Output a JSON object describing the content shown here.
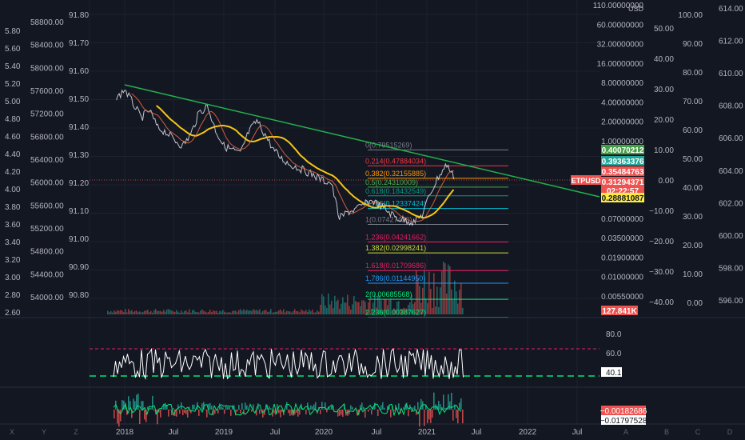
{
  "theme": {
    "bg": "#131722",
    "grid": "#1e222d",
    "axis_text": "#b2b5be",
    "trend": "#22b14c",
    "price": "#e0e3eb",
    "ma_yellow": "#f5c518",
    "ma_orange": "#ff7043",
    "up": "#26a69a",
    "down": "#ef5350",
    "rsi": "#ffffff",
    "rsi_upper": "#e91e63",
    "rsi_lower": "#00e676"
  },
  "chart_data": {
    "type": "line",
    "symbol": "ETPUSD",
    "time_axis": [
      "2018",
      "Jul",
      "2019",
      "Jul",
      "2020",
      "Jul",
      "2021",
      "Jul",
      "2022",
      "Jul"
    ],
    "axes": {
      "left_a": [
        "5.80",
        "5.60",
        "5.40",
        "5.20",
        "5.00",
        "4.80",
        "4.60",
        "4.40",
        "4.20",
        "4.00",
        "3.80",
        "3.60",
        "3.40",
        "3.20",
        "3.00",
        "2.80",
        "2.60"
      ],
      "left_b": [
        "58800.00",
        "58400.00",
        "58000.00",
        "57600.00",
        "57200.00",
        "56800.00",
        "56400.00",
        "56000.00",
        "55600.00",
        "55200.00",
        "54800.00",
        "54400.00",
        "54000.00"
      ],
      "left_c": [
        "91.80",
        "91.70",
        "91.60",
        "91.50",
        "91.40",
        "91.30",
        "91.20",
        "91.10",
        "91.00",
        "90.90",
        "90.80"
      ],
      "price_log": [
        "110.00000000",
        "60.00000000",
        "32.00000000",
        "16.00000000",
        "8.00000000",
        "4.00000000",
        "2.00000000",
        "1.00000000",
        "0.50000000",
        "0.26000000",
        "0.13000000",
        "0.07000000",
        "0.03500000",
        "0.01900000",
        "0.01000000",
        "0.00550000"
      ],
      "price_unit": "USD",
      "right_pct": [
        "50.00",
        "40.00",
        "30.00",
        "20.00",
        "10.00",
        "0.00",
        "−10.00",
        "−20.00",
        "−30.00",
        "−40.00"
      ],
      "right_b": [
        "100.00",
        "90.00",
        "80.00",
        "70.00",
        "60.00",
        "50.00",
        "40.00",
        "30.00",
        "20.00",
        "10.00",
        "0.00"
      ],
      "right_c": [
        "614.00",
        "612.00",
        "610.00",
        "608.00",
        "606.00",
        "604.00",
        "602.00",
        "600.00",
        "598.00",
        "596.00"
      ]
    },
    "price_series": {
      "x": [
        "2017-12",
        "2018-01",
        "2018-02",
        "2018-03",
        "2018-04",
        "2018-05",
        "2018-06",
        "2018-07",
        "2018-08",
        "2018-09",
        "2018-10",
        "2018-11",
        "2018-12",
        "2019-01",
        "2019-02",
        "2019-03",
        "2019-04",
        "2019-05",
        "2019-06",
        "2019-07",
        "2019-08",
        "2019-09",
        "2019-10",
        "2019-11",
        "2019-12",
        "2020-01",
        "2020-02",
        "2020-03",
        "2020-04",
        "2020-05",
        "2020-06",
        "2020-07",
        "2020-08",
        "2020-09",
        "2020-10",
        "2020-11",
        "2020-12",
        "2021-01",
        "2021-02",
        "2021-03",
        "2021-04",
        "2021-05"
      ],
      "y": [
        4.0,
        5.5,
        3.5,
        2.2,
        2.8,
        1.6,
        1.4,
        1.1,
        0.9,
        1.3,
        2.6,
        3.2,
        1.5,
        0.9,
        0.8,
        0.7,
        1.4,
        2.0,
        1.3,
        0.8,
        0.6,
        0.5,
        0.45,
        0.4,
        0.35,
        0.3,
        0.28,
        0.09,
        0.11,
        0.12,
        0.14,
        0.16,
        0.13,
        0.11,
        0.09,
        0.085,
        0.08,
        0.1,
        0.2,
        0.34,
        0.5,
        0.31
      ]
    },
    "fib_levels": [
      {
        "label": "0(0.79515269)",
        "value": 0.79515269,
        "color": "#787b86"
      },
      {
        "label": "0.214(0.47884034)",
        "value": 0.47884034,
        "color": "#f23645"
      },
      {
        "label": "0.382(0.32155885)",
        "value": 0.32155885,
        "color": "#ff9800"
      },
      {
        "label": "0.5(0.24310009)",
        "value": 0.24310009,
        "color": "#4caf50"
      },
      {
        "label": "0.618(0.18432549)",
        "value": 0.18432549,
        "color": "#089981"
      },
      {
        "label": "0.786(0.12337424)",
        "value": 0.12337424,
        "color": "#00bcd4"
      },
      {
        "label": "1(0.07427420)",
        "value": 0.0742742,
        "color": "#787b86"
      },
      {
        "label": "1.236(0.04241662)",
        "value": 0.04241662,
        "color": "#e91e63"
      },
      {
        "label": "1.382(0.02998241)",
        "value": 0.02998241,
        "color": "#cddc39"
      },
      {
        "label": "1.618(0.01709686)",
        "value": 0.01709686,
        "color": "#e91e63"
      },
      {
        "label": "1.786(0.01144950)",
        "value": 0.0114495,
        "color": "#2196f3"
      },
      {
        "label": "2(0.00685568)",
        "value": 0.00685568,
        "color": "#00e676"
      },
      {
        "label": "2.236(0.00387627)",
        "value": 0.00387627,
        "color": "#00e676"
      }
    ],
    "price_tags": [
      {
        "text": "0.40070212",
        "bg": "#43a047",
        "fg": "#ffffff"
      },
      {
        "text": "0.39363376",
        "bg": "#26a69a",
        "fg": "#ffffff"
      },
      {
        "text": "0.35484763",
        "bg": "#ef5350",
        "fg": "#ffffff"
      },
      {
        "text": "0.31294371",
        "bg": "#ef5350",
        "fg": "#ffffff"
      },
      {
        "text": "02:22:57",
        "bg": "#ef5350",
        "fg": "#ffffff"
      },
      {
        "text": "0.28881087",
        "bg": "#ffeb3b",
        "fg": "#131722"
      }
    ],
    "symbol_tag": "ETPUSD",
    "volume_tag": "127.841K",
    "rsi": {
      "axis": [
        "80.0",
        "60.0"
      ],
      "value_tag": "40.1"
    },
    "macd": {
      "tag_1": "−0.00182686",
      "tag_2": "−0.01797528"
    },
    "bottom_letters": [
      "X",
      "Y",
      "Z",
      "A",
      "B",
      "C",
      "D"
    ]
  }
}
